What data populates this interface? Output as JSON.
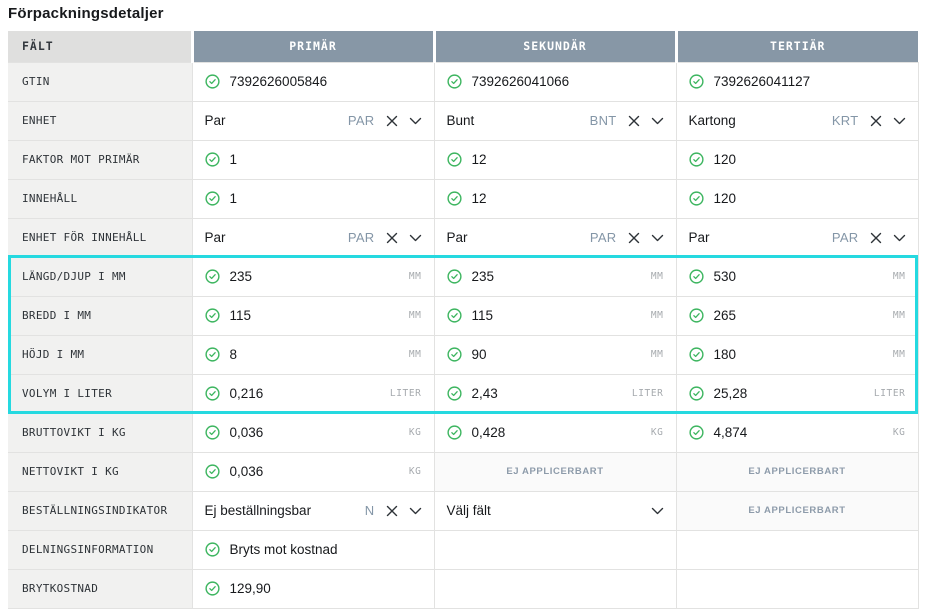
{
  "page_title": "Förpackningsdetaljer",
  "colors": {
    "header_bg": "#8797a6",
    "field_header_bg": "#dfdfde",
    "field_cell_bg": "#f1f1f0",
    "highlight": "#25d9e0",
    "check_green": "#3cb55f",
    "code_color": "#8496a7",
    "na_bg": "#fafafa"
  },
  "icons": {
    "check": "check-circle-icon",
    "clear": "clear-x-icon",
    "chevron": "chevron-down-icon"
  },
  "table": {
    "columns": [
      "FÄLT",
      "PRIMÄR",
      "SEKUNDÄR",
      "TERTIÄR"
    ],
    "rows": [
      {
        "label": "GTIN",
        "highlight": false,
        "cells": [
          {
            "type": "check",
            "value": "7392626005846"
          },
          {
            "type": "check",
            "value": "7392626041066"
          },
          {
            "type": "check",
            "value": "7392626041127"
          }
        ]
      },
      {
        "label": "ENHET",
        "highlight": false,
        "cells": [
          {
            "type": "select",
            "value": "Par",
            "code": "PAR"
          },
          {
            "type": "select",
            "value": "Bunt",
            "code": "BNT"
          },
          {
            "type": "select",
            "value": "Kartong",
            "code": "KRT"
          }
        ]
      },
      {
        "label": "FAKTOR MOT PRIMÄR",
        "highlight": false,
        "cells": [
          {
            "type": "check",
            "value": "1"
          },
          {
            "type": "check",
            "value": "12"
          },
          {
            "type": "check",
            "value": "120"
          }
        ]
      },
      {
        "label": "INNEHÅLL",
        "highlight": false,
        "cells": [
          {
            "type": "check",
            "value": "1"
          },
          {
            "type": "check",
            "value": "12"
          },
          {
            "type": "check",
            "value": "120"
          }
        ]
      },
      {
        "label": "ENHET FÖR INNEHÅLL",
        "highlight": false,
        "cells": [
          {
            "type": "select",
            "value": "Par",
            "code": "PAR"
          },
          {
            "type": "select",
            "value": "Par",
            "code": "PAR"
          },
          {
            "type": "select",
            "value": "Par",
            "code": "PAR"
          }
        ]
      },
      {
        "label": "LÄNGD/DJUP I MM",
        "highlight": true,
        "cells": [
          {
            "type": "check",
            "value": "235",
            "unit": "MM"
          },
          {
            "type": "check",
            "value": "235",
            "unit": "MM"
          },
          {
            "type": "check",
            "value": "530",
            "unit": "MM"
          }
        ]
      },
      {
        "label": "BREDD I MM",
        "highlight": true,
        "cells": [
          {
            "type": "check",
            "value": "115",
            "unit": "MM"
          },
          {
            "type": "check",
            "value": "115",
            "unit": "MM"
          },
          {
            "type": "check",
            "value": "265",
            "unit": "MM"
          }
        ]
      },
      {
        "label": "HÖJD I MM",
        "highlight": true,
        "cells": [
          {
            "type": "check",
            "value": "8",
            "unit": "MM"
          },
          {
            "type": "check",
            "value": "90",
            "unit": "MM"
          },
          {
            "type": "check",
            "value": "180",
            "unit": "MM"
          }
        ]
      },
      {
        "label": "VOLYM I LITER",
        "highlight": true,
        "cells": [
          {
            "type": "check",
            "value": "0,216",
            "unit": "LITER"
          },
          {
            "type": "check",
            "value": "2,43",
            "unit": "LITER"
          },
          {
            "type": "check",
            "value": "25,28",
            "unit": "LITER"
          }
        ]
      },
      {
        "label": "BRUTTOVIKT I KG",
        "highlight": false,
        "cells": [
          {
            "type": "check",
            "value": "0,036",
            "unit": "KG"
          },
          {
            "type": "check",
            "value": "0,428",
            "unit": "KG"
          },
          {
            "type": "check",
            "value": "4,874",
            "unit": "KG"
          }
        ]
      },
      {
        "label": "NETTOVIKT I KG",
        "highlight": false,
        "cells": [
          {
            "type": "check",
            "value": "0,036",
            "unit": "KG"
          },
          {
            "type": "na",
            "value": "EJ APPLICERBART"
          },
          {
            "type": "na",
            "value": "EJ APPLICERBART"
          }
        ]
      },
      {
        "label": "BESTÄLLNINGSINDIKATOR",
        "highlight": false,
        "cells": [
          {
            "type": "select",
            "value": "Ej beställningsbar",
            "code": "N"
          },
          {
            "type": "select-placeholder",
            "value": "Välj fält"
          },
          {
            "type": "na",
            "value": "EJ APPLICERBART"
          }
        ]
      },
      {
        "label": "DELNINGSINFORMATION",
        "highlight": false,
        "cells": [
          {
            "type": "check",
            "value": "Bryts mot kostnad"
          },
          {
            "type": "empty"
          },
          {
            "type": "empty"
          }
        ]
      },
      {
        "label": "BRYTKOSTNAD",
        "highlight": false,
        "cells": [
          {
            "type": "check",
            "value": "129,90"
          },
          {
            "type": "empty"
          },
          {
            "type": "empty"
          }
        ]
      }
    ]
  }
}
